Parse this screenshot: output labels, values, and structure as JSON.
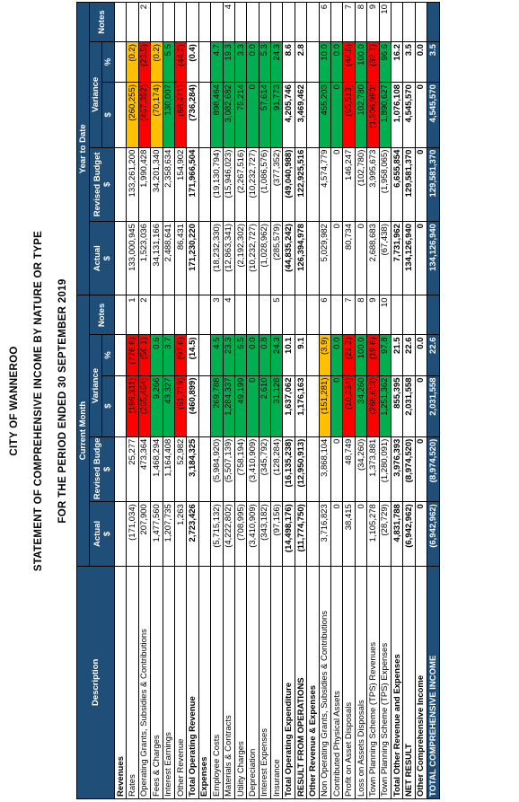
{
  "titles": {
    "line1": "CITY OF WANNEROO",
    "line2": "STATEMENT OF COMPREHENSIVE INCOME BY NATURE OR TYPE",
    "line3": "FOR THE PERIOD ENDED 30 SEPTEMBER 2019"
  },
  "header": {
    "description": "Description",
    "current_month": "Current Month",
    "year_to_date": "Year to Date",
    "notes": "Notes",
    "actual": "Actual",
    "revised_budget": "Revised Budget",
    "variance": "Variance",
    "dollar": "$",
    "percent": "%"
  },
  "colors": {
    "header_blue": "#1f4e79",
    "red": "#ff0000",
    "green": "#00b050",
    "amber": "#ffc000"
  },
  "rows": [
    {
      "type": "sect",
      "desc": "Revenues"
    },
    {
      "desc": "Rates",
      "cm_actual": "(171,034)",
      "cm_budget": "25,277",
      "cm_var": "(196,311)",
      "cm_pct": "(776.6)",
      "cm_c": "red",
      "cm_note": "1",
      "ytd_actual": "133,000,945",
      "ytd_budget": "133,261,200",
      "ytd_var": "(260,255)",
      "ytd_pct": "(0.2)",
      "ytd_c": "amber",
      "ytd_note": ""
    },
    {
      "desc": "Operating Grants, Subsidies & Contributions",
      "cm_actual": "207,900",
      "cm_budget": "473,364",
      "cm_var": "(265,464)",
      "cm_pct": "(56.1)",
      "cm_c": "red",
      "cm_note": "2",
      "ytd_actual": "1,523,036",
      "ytd_budget": "1,990,428",
      "ytd_var": "(467,392)",
      "ytd_pct": "(23.5)",
      "ytd_c": "red",
      "ytd_note": "2"
    },
    {
      "desc": "Fees & Charges",
      "cm_actual": "1,477,560",
      "cm_budget": "1,468,294",
      "cm_var": "9,266",
      "cm_pct": "0.6",
      "cm_c": "green",
      "cm_note": "",
      "ytd_actual": "34,131,166",
      "ytd_budget": "34,201,340",
      "ytd_var": "(70,174)",
      "ytd_pct": "(0.2)",
      "ytd_c": "amber",
      "ytd_note": ""
    },
    {
      "desc": "Interest Earnings",
      "cm_actual": "1,207,735",
      "cm_budget": "1,164,408",
      "cm_var": "43,327",
      "cm_pct": "3.7",
      "cm_c": "green",
      "cm_note": "",
      "ytd_actual": "2,488,641",
      "ytd_budget": "2,358,634",
      "ytd_var": "130,007",
      "ytd_pct": "5.5",
      "ytd_c": "green",
      "ytd_note": ""
    },
    {
      "desc": "Other Revenue",
      "cm_actual": "1,263",
      "cm_budget": "52,982",
      "cm_var": "(51,719)",
      "cm_pct": "(97.6)",
      "cm_c": "red",
      "cm_note": "",
      "ytd_actual": "86,431",
      "ytd_budget": "154,902",
      "ytd_var": "(68,471)",
      "ytd_pct": "(44.2)",
      "ytd_c": "red",
      "ytd_note": ""
    },
    {
      "type": "total",
      "desc": "Total Operating Revenue",
      "cm_actual": "2,723,426",
      "cm_budget": "3,184,325",
      "cm_var": "(460,899)",
      "cm_pct": "(14.5)",
      "cm_c": "",
      "cm_note": "",
      "ytd_actual": "171,230,220",
      "ytd_budget": "171,966,504",
      "ytd_var": "(736,284)",
      "ytd_pct": "(0.4)",
      "ytd_c": "",
      "ytd_note": ""
    },
    {
      "type": "sect",
      "desc": "Expenses"
    },
    {
      "desc": "Employee Costs",
      "cm_actual": "(5,715,132)",
      "cm_budget": "(5,984,920)",
      "cm_var": "269,788",
      "cm_pct": "4.5",
      "cm_c": "green",
      "cm_note": "3",
      "ytd_actual": "(18,232,330)",
      "ytd_budget": "(19,130,794)",
      "ytd_var": "898,464",
      "ytd_pct": "4.7",
      "ytd_c": "green",
      "ytd_note": ""
    },
    {
      "desc": "Materials & Contracts",
      "cm_actual": "(4,222,802)",
      "cm_budget": "(5,507,139)",
      "cm_var": "1,284,337",
      "cm_pct": "23.3",
      "cm_c": "green",
      "cm_note": "4",
      "ytd_actual": "(12,863,341)",
      "ytd_budget": "(15,946,023)",
      "ytd_var": "3,082,682",
      "ytd_pct": "19.3",
      "ytd_c": "green",
      "ytd_note": "4"
    },
    {
      "desc": "Utility Charges",
      "cm_actual": "(708,995)",
      "cm_budget": "(758,194)",
      "cm_var": "49,199",
      "cm_pct": "6.5",
      "cm_c": "green",
      "cm_note": "",
      "ytd_actual": "(2,192,302)",
      "ytd_budget": "(2,267,516)",
      "ytd_var": "75,214",
      "ytd_pct": "3.3",
      "ytd_c": "green",
      "ytd_note": ""
    },
    {
      "desc": "Depreciation",
      "cm_actual": "(3,410,909)",
      "cm_budget": "(3,410,909)",
      "cm_var": "0",
      "cm_pct": "0.0",
      "cm_c": "green",
      "cm_note": "",
      "ytd_actual": "(10,232,727)",
      "ytd_budget": "(10,232,727)",
      "ytd_var": "0",
      "ytd_pct": "0.0",
      "ytd_c": "green",
      "ytd_note": ""
    },
    {
      "desc": "Interest Expenses",
      "cm_actual": "(343,182)",
      "cm_budget": "(345,792)",
      "cm_var": "2,610",
      "cm_pct": "0.8",
      "cm_c": "green",
      "cm_note": "",
      "ytd_actual": "(1,028,962)",
      "ytd_budget": "(1,086,576)",
      "ytd_var": "57,614",
      "ytd_pct": "5.3",
      "ytd_c": "green",
      "ytd_note": ""
    },
    {
      "desc": "Insurance",
      "cm_actual": "(97,156)",
      "cm_budget": "(128,284)",
      "cm_var": "31,128",
      "cm_pct": "24.3",
      "cm_c": "green",
      "cm_note": "5",
      "ytd_actual": "(285,579)",
      "ytd_budget": "(377,352)",
      "ytd_var": "91,773",
      "ytd_pct": "24.3",
      "ytd_c": "green",
      "ytd_note": ""
    },
    {
      "type": "total",
      "desc": "Total Operating Expenditure",
      "cm_actual": "(14,498,176)",
      "cm_budget": "(16,135,238)",
      "cm_var": "1,637,062",
      "cm_pct": "10.1",
      "cm_c": "",
      "cm_note": "",
      "ytd_actual": "(44,835,242)",
      "ytd_budget": "(49,040,988)",
      "ytd_var": "4,205,746",
      "ytd_pct": "8.6",
      "ytd_c": "",
      "ytd_note": ""
    },
    {
      "type": "total",
      "desc": "RESULT FROM OPERATIONS",
      "cm_actual": "(11,774,750)",
      "cm_budget": "(12,950,913)",
      "cm_var": "1,176,163",
      "cm_pct": "9.1",
      "cm_c": "",
      "cm_note": "",
      "ytd_actual": "126,394,978",
      "ytd_budget": "122,925,516",
      "ytd_var": "3,469,462",
      "ytd_pct": "2.8",
      "ytd_c": "",
      "ytd_note": ""
    },
    {
      "type": "sect",
      "desc": "Other Revenue & Expenses"
    },
    {
      "desc": "Non Operating Grants, Subsidies & Contributions",
      "cm_actual": "3,716,823",
      "cm_budget": "3,868,104",
      "cm_var": "(151,281)",
      "cm_pct": "(3.9)",
      "cm_c": "amber",
      "cm_note": "6",
      "ytd_actual": "5,029,982",
      "ytd_budget": "4,574,779",
      "ytd_var": "455,203",
      "ytd_pct": "10.0",
      "ytd_c": "green",
      "ytd_note": "6"
    },
    {
      "desc": "Contributed Physical Assets",
      "cm_actual": "0",
      "cm_budget": "0",
      "cm_var": "0",
      "cm_pct": "0.0",
      "cm_c": "green",
      "cm_note": "",
      "ytd_actual": "0",
      "ytd_budget": "0",
      "ytd_var": "0",
      "ytd_pct": "0.0",
      "ytd_c": "green",
      "ytd_note": ""
    },
    {
      "desc": "Profit on Asset Disposals",
      "cm_actual": "38,415",
      "cm_budget": "48,749",
      "cm_var": "(10,334)",
      "cm_pct": "(21.2)",
      "cm_c": "red",
      "cm_note": "7",
      "ytd_actual": "80,734",
      "ytd_budget": "146,247",
      "ytd_var": "(65,513)",
      "ytd_pct": "(44.8)",
      "ytd_c": "red",
      "ytd_note": "7"
    },
    {
      "desc": "Loss on Assets Disposals",
      "cm_actual": "0",
      "cm_budget": "(34,260)",
      "cm_var": "34,260",
      "cm_pct": "100.0",
      "cm_c": "green",
      "cm_note": "8",
      "ytd_actual": "0",
      "ytd_budget": "(102,780)",
      "ytd_var": "102,780",
      "ytd_pct": "100.0",
      "ytd_c": "green",
      "ytd_note": "8"
    },
    {
      "desc": "Town Planning Scheme (TPS) Revenues",
      "cm_actual": "1,105,278",
      "cm_budget": "1,373,881",
      "cm_var": "(268,613)",
      "cm_pct": "(19.6)",
      "cm_c": "red",
      "cm_note": "9",
      "ytd_actual": "2,688,683",
      "ytd_budget": "3,995,673",
      "ytd_var": "(1,306,990)",
      "ytd_pct": "(32.7)",
      "ytd_c": "red",
      "ytd_note": "9"
    },
    {
      "desc": "Town Planning Scheme (TPS) Expenses",
      "cm_actual": "(28,729)",
      "cm_budget": "(1,280,091)",
      "cm_var": "1,251,362",
      "cm_pct": "97.8",
      "cm_c": "green",
      "cm_note": "10",
      "ytd_actual": "(67,438)",
      "ytd_budget": "(1,958,065)",
      "ytd_var": "1,890,627",
      "ytd_pct": "96.6",
      "ytd_c": "green",
      "ytd_note": "10"
    },
    {
      "type": "total",
      "desc": "Total Other Revenue and Expenses",
      "cm_actual": "4,831,788",
      "cm_budget": "3,976,393",
      "cm_var": "855,395",
      "cm_pct": "21.5",
      "cm_c": "",
      "cm_note": "",
      "ytd_actual": "7,731,962",
      "ytd_budget": "6,655,854",
      "ytd_var": "1,076,108",
      "ytd_pct": "16.2",
      "ytd_c": "",
      "ytd_note": ""
    },
    {
      "type": "total",
      "desc": "NET RESULT",
      "cm_actual": "(6,942,962)",
      "cm_budget": "(8,974,520)",
      "cm_var": "2,031,558",
      "cm_pct": "22.6",
      "cm_c": "",
      "cm_note": "",
      "ytd_actual": "134,126,940",
      "ytd_budget": "129,581,370",
      "ytd_var": "4,545,570",
      "ytd_pct": "3.5",
      "ytd_c": "",
      "ytd_note": ""
    },
    {
      "type": "total",
      "desc": "Other Comprehensive Income",
      "cm_actual": "0",
      "cm_budget": "0",
      "cm_var": "0",
      "cm_pct": "0.0",
      "cm_c": "",
      "cm_note": "",
      "ytd_actual": "0",
      "ytd_budget": "0",
      "ytd_var": "0",
      "ytd_pct": "0.0",
      "ytd_c": "",
      "ytd_note": ""
    },
    {
      "type": "final",
      "desc": "TOTAL COMPREHENSIVE INCOME",
      "cm_actual": "(6,942,962)",
      "cm_budget": "(8,974,520)",
      "cm_var": "2,031,558",
      "cm_pct": "22.6",
      "cm_c": "",
      "cm_note": "",
      "ytd_actual": "134,126,940",
      "ytd_budget": "129,581,370",
      "ytd_var": "4,545,570",
      "ytd_pct": "3.5",
      "ytd_c": "",
      "ytd_note": ""
    }
  ]
}
